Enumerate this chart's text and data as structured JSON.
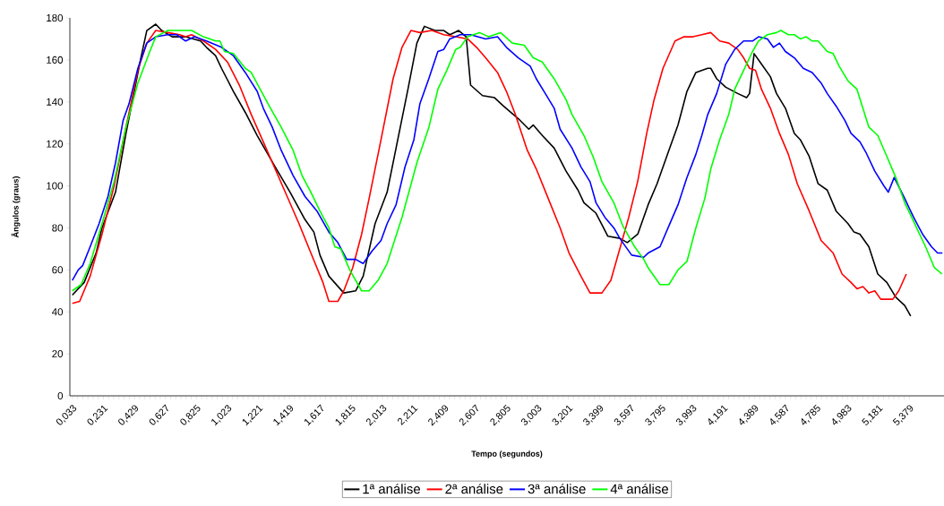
{
  "chart_data": {
    "type": "line",
    "xlabel": "Tempo (segundos)",
    "ylabel": "Ângulos (graus)",
    "legend": "bottom",
    "marker": "none",
    "line_style": "solid",
    "xlim": [
      0.0165,
      5.6
    ],
    "ylim": [
      0,
      180
    ],
    "yticks": [
      0,
      20,
      40,
      60,
      80,
      100,
      120,
      140,
      160,
      180
    ],
    "xticks": [
      {
        "value": 0.033,
        "label": "0,033"
      },
      {
        "value": 0.231,
        "label": "0,231"
      },
      {
        "value": 0.429,
        "label": "0,429"
      },
      {
        "value": 0.627,
        "label": "0,627"
      },
      {
        "value": 0.825,
        "label": "0,825"
      },
      {
        "value": 1.023,
        "label": "1,023"
      },
      {
        "value": 1.221,
        "label": "1,221"
      },
      {
        "value": 1.419,
        "label": "1,419"
      },
      {
        "value": 1.617,
        "label": "1,617"
      },
      {
        "value": 1.815,
        "label": "1,815"
      },
      {
        "value": 2.013,
        "label": "2,013"
      },
      {
        "value": 2.211,
        "label": "2,211"
      },
      {
        "value": 2.409,
        "label": "2,409"
      },
      {
        "value": 2.607,
        "label": "2,607"
      },
      {
        "value": 2.805,
        "label": "2,805"
      },
      {
        "value": 3.003,
        "label": "3,003"
      },
      {
        "value": 3.201,
        "label": "3,201"
      },
      {
        "value": 3.399,
        "label": "3,399"
      },
      {
        "value": 3.597,
        "label": "3,597"
      },
      {
        "value": 3.795,
        "label": "3,795"
      },
      {
        "value": 3.993,
        "label": "3,993"
      },
      {
        "value": 4.191,
        "label": "4,191"
      },
      {
        "value": 4.389,
        "label": "4,389"
      },
      {
        "value": 4.587,
        "label": "4,587"
      },
      {
        "value": 4.785,
        "label": "4,785"
      },
      {
        "value": 4.983,
        "label": "4,983"
      },
      {
        "value": 5.181,
        "label": "5,181"
      },
      {
        "value": 5.379,
        "label": "5,379"
      }
    ],
    "series": [
      {
        "name": "1ª análise",
        "color": "#000000",
        "x": [
          0.032,
          0.108,
          0.184,
          0.222,
          0.308,
          0.375,
          0.47,
          0.508,
          0.565,
          0.603,
          0.67,
          0.756,
          0.851,
          0.889,
          0.947,
          0.985,
          1.061,
          1.137,
          1.213,
          1.328,
          1.423,
          1.518,
          1.575,
          1.614,
          1.671,
          1.766,
          1.842,
          1.89,
          1.966,
          2.043,
          2.1,
          2.176,
          2.233,
          2.281,
          2.348,
          2.405,
          2.443,
          2.5,
          2.548,
          2.576,
          2.652,
          2.729,
          2.786,
          2.881,
          2.948,
          2.976,
          3.034,
          3.11,
          3.186,
          3.262,
          3.3,
          3.377,
          3.453,
          3.529,
          3.577,
          3.644,
          3.71,
          3.767,
          3.843,
          3.901,
          3.958,
          4.015,
          4.091,
          4.11,
          4.148,
          4.206,
          4.282,
          4.339,
          4.358,
          4.387,
          4.434,
          4.491,
          4.53,
          4.587,
          4.644,
          4.682,
          4.739,
          4.796,
          4.854,
          4.911,
          4.987,
          5.025,
          5.063,
          5.12,
          5.177,
          5.235,
          5.292,
          5.349,
          5.387
        ],
        "values": [
          48,
          54,
          68,
          80,
          97,
          125,
          161,
          174,
          177,
          174,
          171,
          171,
          169,
          166,
          162,
          156,
          145,
          135,
          124,
          109,
          97,
          84,
          78,
          67,
          57,
          49,
          50,
          57,
          82,
          97,
          118,
          146,
          168,
          176,
          174,
          174,
          172,
          174,
          171,
          148,
          143,
          142,
          138,
          132,
          127,
          129,
          124,
          118,
          107,
          98,
          92,
          87,
          76,
          75,
          73,
          77,
          91,
          101,
          117,
          129,
          145,
          154,
          156,
          156,
          151,
          147,
          144,
          142,
          144,
          163,
          158,
          152,
          144,
          137,
          125,
          122,
          114,
          101,
          98,
          88,
          82,
          78,
          77,
          71,
          58,
          54,
          47,
          43,
          38
        ]
      },
      {
        "name": "2ª análise",
        "color": "#ff0000",
        "x": [
          0.032,
          0.079,
          0.146,
          0.222,
          0.299,
          0.375,
          0.451,
          0.508,
          0.565,
          0.642,
          0.718,
          0.756,
          0.794,
          0.87,
          0.947,
          1.023,
          1.099,
          1.175,
          1.252,
          1.328,
          1.404,
          1.48,
          1.556,
          1.633,
          1.671,
          1.728,
          1.766,
          1.823,
          1.88,
          1.928,
          2.004,
          2.081,
          2.138,
          2.195,
          2.252,
          2.329,
          2.405,
          2.481,
          2.557,
          2.614,
          2.672,
          2.748,
          2.805,
          2.862,
          2.938,
          2.996,
          3.072,
          3.148,
          3.205,
          3.281,
          3.339,
          3.415,
          3.472,
          3.529,
          3.586,
          3.643,
          3.701,
          3.748,
          3.805,
          3.882,
          3.939,
          3.996,
          4.053,
          4.11,
          4.167,
          4.225,
          4.282,
          4.32,
          4.358,
          4.396,
          4.434,
          4.491,
          4.549,
          4.606,
          4.663,
          4.739,
          4.815,
          4.892,
          4.949,
          5.006,
          5.044,
          5.082,
          5.12,
          5.158,
          5.196,
          5.273,
          5.311,
          5.359
        ],
        "values": [
          44,
          45,
          57,
          77,
          100,
          128,
          155,
          168,
          174,
          173,
          172,
          171,
          172,
          169,
          165,
          159,
          148,
          134,
          121,
          108,
          95,
          82,
          68,
          54,
          45,
          45,
          50,
          61,
          77,
          94,
          122,
          151,
          166,
          174,
          173,
          174,
          172,
          171,
          170,
          166,
          161,
          154,
          145,
          134,
          117,
          108,
          94,
          80,
          68,
          57,
          49,
          49,
          55,
          70,
          85,
          102,
          125,
          141,
          156,
          169,
          171,
          171,
          172,
          173,
          169,
          168,
          165,
          161,
          156,
          155,
          146,
          137,
          125,
          115,
          101,
          88,
          74,
          68,
          58,
          54,
          51,
          52,
          49,
          50,
          46,
          46,
          50,
          58
        ]
      },
      {
        "name": "3ª análise",
        "color": "#0000ff",
        "x": [
          0.032,
          0.07,
          0.098,
          0.146,
          0.203,
          0.26,
          0.308,
          0.356,
          0.394,
          0.451,
          0.508,
          0.565,
          0.642,
          0.699,
          0.756,
          0.813,
          0.889,
          0.985,
          1.061,
          1.137,
          1.213,
          1.252,
          1.309,
          1.366,
          1.442,
          1.518,
          1.595,
          1.671,
          1.728,
          1.785,
          1.842,
          1.89,
          1.947,
          2.004,
          2.043,
          2.1,
          2.157,
          2.214,
          2.252,
          2.309,
          2.367,
          2.405,
          2.443,
          2.51,
          2.576,
          2.672,
          2.748,
          2.805,
          2.881,
          2.957,
          2.996,
          3.053,
          3.11,
          3.148,
          3.224,
          3.281,
          3.339,
          3.377,
          3.434,
          3.491,
          3.529,
          3.605,
          3.682,
          3.71,
          3.786,
          3.843,
          3.901,
          3.958,
          4.015,
          4.053,
          4.091,
          4.148,
          4.206,
          4.263,
          4.32,
          4.377,
          4.415,
          4.472,
          4.51,
          4.549,
          4.587,
          4.644,
          4.701,
          4.758,
          4.815,
          4.854,
          4.911,
          4.968,
          5.006,
          5.063,
          5.101,
          5.158,
          5.216,
          5.244,
          5.282,
          5.349,
          5.406,
          5.463,
          5.52,
          5.559,
          5.59
        ],
        "values": [
          55,
          60,
          62,
          71,
          82,
          95,
          111,
          131,
          139,
          156,
          168,
          171,
          172,
          172,
          169,
          171,
          169,
          166,
          162,
          154,
          145,
          137,
          128,
          117,
          105,
          95,
          88,
          78,
          73,
          65,
          65,
          63,
          69,
          74,
          82,
          91,
          109,
          122,
          139,
          151,
          164,
          165,
          170,
          172,
          172,
          170,
          171,
          166,
          161,
          157,
          151,
          144,
          137,
          127,
          118,
          109,
          102,
          92,
          85,
          80,
          75,
          67,
          66,
          68,
          71,
          81,
          91,
          104,
          115,
          124,
          134,
          144,
          158,
          165,
          169,
          169,
          171,
          170,
          166,
          168,
          164,
          161,
          156,
          154,
          149,
          144,
          138,
          131,
          125,
          121,
          116,
          107,
          100,
          97,
          104,
          94,
          85,
          77,
          71,
          68,
          68
        ]
      },
      {
        "name": "4ª análise",
        "color": "#00ff00",
        "x": [
          0.032,
          0.089,
          0.146,
          0.222,
          0.299,
          0.375,
          0.451,
          0.527,
          0.565,
          0.642,
          0.718,
          0.794,
          0.87,
          0.947,
          0.975,
          1.004,
          1.061,
          1.137,
          1.175,
          1.232,
          1.29,
          1.366,
          1.442,
          1.499,
          1.556,
          1.614,
          1.671,
          1.709,
          1.747,
          1.804,
          1.88,
          1.928,
          1.985,
          2.043,
          2.138,
          2.233,
          2.31,
          2.367,
          2.424,
          2.481,
          2.51,
          2.557,
          2.633,
          2.691,
          2.767,
          2.843,
          2.919,
          2.976,
          3.034,
          3.11,
          3.186,
          3.224,
          3.3,
          3.358,
          3.415,
          3.491,
          3.548,
          3.624,
          3.682,
          3.71,
          3.786,
          3.843,
          3.901,
          3.958,
          4.015,
          4.072,
          4.11,
          4.167,
          4.225,
          4.263,
          4.32,
          4.377,
          4.415,
          4.472,
          4.53,
          4.558,
          4.606,
          4.644,
          4.682,
          4.72,
          4.758,
          4.796,
          4.854,
          4.892,
          4.93,
          4.987,
          5.044,
          5.12,
          5.177,
          5.235,
          5.292,
          5.349,
          5.425,
          5.482,
          5.539,
          5.587
        ],
        "values": [
          50,
          53,
          63,
          82,
          102,
          128,
          149,
          164,
          171,
          174,
          174,
          174,
          171,
          169,
          169,
          164,
          163,
          156,
          154,
          146,
          138,
          128,
          117,
          105,
          97,
          88,
          80,
          71,
          70,
          60,
          50,
          50,
          55,
          63,
          85,
          111,
          128,
          146,
          155,
          165,
          166,
          171,
          173,
          171,
          173,
          168,
          167,
          161,
          159,
          151,
          141,
          134,
          124,
          114,
          102,
          92,
          81,
          71,
          65,
          61,
          53,
          53,
          60,
          64,
          80,
          94,
          108,
          122,
          134,
          146,
          155,
          164,
          169,
          172,
          173,
          174,
          172,
          172,
          170,
          171,
          169,
          169,
          164,
          163,
          157,
          150,
          146,
          128,
          124,
          114,
          104,
          92,
          80,
          71,
          61,
          58
        ]
      }
    ]
  }
}
